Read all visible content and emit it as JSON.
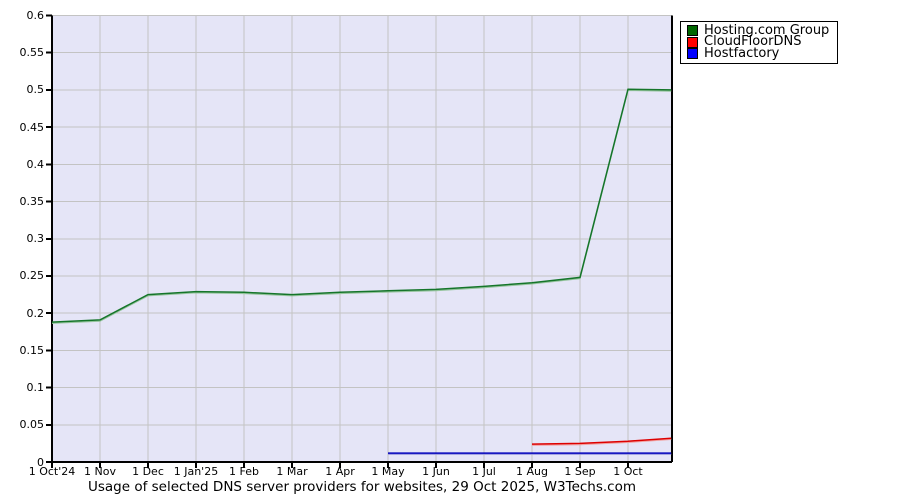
{
  "colors": {
    "page_bg": "#ffffff",
    "plot_bg": "#e5e5f7",
    "grid": "#c3c3c3",
    "axis": "#000000",
    "text": "#000000",
    "legend_border": "#000000"
  },
  "chart_data": {
    "type": "line",
    "title": "Usage of selected DNS server providers for websites, 29 Oct 2025, W3Techs.com",
    "xlabel": "",
    "ylabel": "",
    "x_unit": "months since 1 Oct 2024",
    "xlim": [
      0,
      12.917
    ],
    "ylim": [
      0,
      0.6
    ],
    "grid": true,
    "legend_position": "top-right-outside",
    "y_ticks": [
      0,
      0.05,
      0.1,
      0.15,
      0.2,
      0.25,
      0.3,
      0.35,
      0.4,
      0.45,
      0.5,
      0.55,
      0.6
    ],
    "y_tick_labels": [
      "0",
      "0.05",
      "0.1",
      "0.15",
      "0.2",
      "0.25",
      "0.3",
      "0.35",
      "0.4",
      "0.45",
      "0.5",
      "0.55",
      "0.6"
    ],
    "x_ticks": [
      0,
      1,
      2,
      3,
      4,
      5,
      6,
      7,
      8,
      9,
      10,
      11,
      12
    ],
    "x_tick_labels": [
      "1 Oct'24",
      "1 Nov",
      "1 Dec",
      "1 Jan'25",
      "1 Feb",
      "1 Mar",
      "1 Apr",
      "1 May",
      "1 Jun",
      "1 Jul",
      "1 Aug",
      "1 Sep",
      "1 Oct"
    ],
    "series": [
      {
        "name": "Hosting.com Group",
        "color": "#006600",
        "line_color": "#15752a",
        "line_color_light": "#94c49c",
        "x": [
          0,
          1,
          2,
          3,
          4,
          5,
          6,
          7,
          8,
          9,
          10,
          11,
          12,
          12.9
        ],
        "values": [
          0.188,
          0.191,
          0.225,
          0.229,
          0.228,
          0.225,
          0.228,
          0.23,
          0.232,
          0.236,
          0.241,
          0.248,
          0.501,
          0.5
        ]
      },
      {
        "name": "CloudFloorDNS",
        "color": "#ff0000",
        "line_color": "#dd0000",
        "line_color_light": "#f2a0a0",
        "x": [
          10,
          11,
          12,
          12.9
        ],
        "values": [
          0.024,
          0.025,
          0.028,
          0.032
        ]
      },
      {
        "name": "Hostfactory",
        "color": "#0000ff",
        "line_color": "#0000bb",
        "line_color_light": "#9a9ade",
        "x": [
          7,
          12.9
        ],
        "values": [
          0.012,
          0.012
        ]
      }
    ]
  }
}
